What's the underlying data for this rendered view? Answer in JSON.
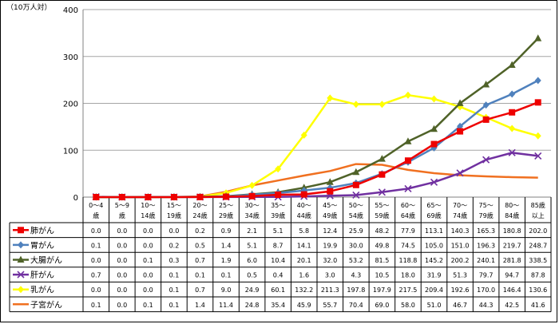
{
  "chart_data": {
    "type": "line",
    "ylabel": "（10万人対）",
    "ylim": [
      0,
      400
    ],
    "yticks": [
      0,
      100,
      200,
      300,
      400
    ],
    "grid": true,
    "legend": "table-left",
    "categories": [
      [
        "0～4",
        "歳"
      ],
      [
        "5～9",
        "歳"
      ],
      [
        "10～",
        "14歳"
      ],
      [
        "15～",
        "19歳"
      ],
      [
        "20～",
        "24歳"
      ],
      [
        "25～",
        "29歳"
      ],
      [
        "30～",
        "34歳"
      ],
      [
        "35～",
        "39歳"
      ],
      [
        "40～",
        "44歳"
      ],
      [
        "45～",
        "49歳"
      ],
      [
        "50～",
        "54歳"
      ],
      [
        "55～",
        "59歳"
      ],
      [
        "60～",
        "64歳"
      ],
      [
        "65～",
        "69歳"
      ],
      [
        "70～",
        "74歳"
      ],
      [
        "75～",
        "79歳"
      ],
      [
        "80～",
        "84歳"
      ],
      [
        "85歳",
        "以上"
      ]
    ],
    "series": [
      {
        "name": "肺がん",
        "color": "#ee0000",
        "marker": "square",
        "values": [
          0.0,
          0.0,
          0.0,
          0.0,
          0.2,
          0.9,
          2.1,
          5.1,
          5.8,
          12.4,
          25.9,
          48.2,
          77.9,
          113.1,
          140.3,
          165.3,
          180.8,
          202.0
        ],
        "labels": [
          "0.0",
          "0.0",
          "0.0",
          "0.0",
          "0.2",
          "0.9",
          "2.1",
          "5.1",
          "5.8",
          "12.4",
          "25.9",
          "48.2",
          "77.9",
          "113.1",
          "140.3",
          "165.3",
          "180.8",
          "202.0"
        ]
      },
      {
        "name": "胃がん",
        "color": "#4f81bd",
        "marker": "diamond",
        "values": [
          0.1,
          0.0,
          0.0,
          0.2,
          0.5,
          1.4,
          5.1,
          8.7,
          14.1,
          19.9,
          30.0,
          49.8,
          74.5,
          105.0,
          151.0,
          196.3,
          219.7,
          248.7
        ],
        "labels": [
          "0.1",
          "0.0",
          "0.0",
          "0.2",
          "0.5",
          "1.4",
          "5.1",
          "8.7",
          "14.1",
          "19.9",
          "30.0",
          "49.8",
          "74.5",
          "105.0",
          "151.0",
          "196.3",
          "219.7",
          "248.7"
        ]
      },
      {
        "name": "大腸がん",
        "color": "#4f6228",
        "marker": "triangle",
        "values": [
          0.0,
          0.0,
          0.1,
          0.3,
          0.7,
          1.9,
          6.0,
          10.4,
          20.1,
          32.0,
          53.2,
          81.5,
          118.8,
          145.2,
          200.2,
          240.1,
          281.8,
          338.5
        ],
        "labels": [
          "0.0",
          "0.0",
          "0.1",
          "0.3",
          "0.7",
          "1.9",
          "6.0",
          "10.4",
          "20.1",
          "32.0",
          "53.2",
          "81.5",
          "118.8",
          "145.2",
          "200.2",
          "240.1",
          "281.8",
          "338.5"
        ]
      },
      {
        "name": "肝がん",
        "color": "#7030a0",
        "marker": "x",
        "values": [
          0.7,
          0.0,
          0.0,
          0.1,
          0.1,
          0.1,
          0.5,
          0.4,
          1.6,
          3.0,
          4.3,
          10.5,
          18.0,
          31.9,
          51.3,
          79.7,
          94.7,
          87.8
        ],
        "labels": [
          "0.7",
          "0.0",
          "0.0",
          "0.1",
          "0.1",
          "0.1",
          "0.5",
          "0.4",
          "1.6",
          "3.0",
          "4.3",
          "10.5",
          "18.0",
          "31.9",
          "51.3",
          "79.7",
          "94.7",
          "87.8"
        ]
      },
      {
        "name": "乳がん",
        "color": "#ffff00",
        "marker": "diamond-fill",
        "values": [
          0.0,
          0.0,
          0.0,
          0.1,
          0.7,
          9.0,
          24.9,
          60.1,
          132.2,
          211.3,
          197.8,
          197.9,
          217.5,
          209.4,
          192.6,
          170.0,
          146.4,
          130.6
        ],
        "labels": [
          "0.0",
          "0.0",
          "0.0",
          "0.1",
          "0.7",
          "9.0",
          "24.9",
          "60.1",
          "132.2",
          "211.3",
          "197.8",
          "197.9",
          "217.5",
          "209.4",
          "192.6",
          "170.0",
          "146.4",
          "130.6"
        ]
      },
      {
        "name": "子宮がん",
        "color": "#f07020",
        "marker": "none",
        "values": [
          0.1,
          0.0,
          0.1,
          0.1,
          1.4,
          11.4,
          24.8,
          35.4,
          45.9,
          55.7,
          70.4,
          69.0,
          58.0,
          51.0,
          46.7,
          44.3,
          42.5,
          41.6
        ],
        "labels": [
          "0.1",
          "0.0",
          "0.1",
          "0.1",
          "1.4",
          "11.4",
          "24.8",
          "35.4",
          "45.9",
          "55.7",
          "70.4",
          "69.0",
          "58.0",
          "51.0",
          "46.7",
          "44.3",
          "42.5",
          "41.6"
        ]
      }
    ]
  }
}
